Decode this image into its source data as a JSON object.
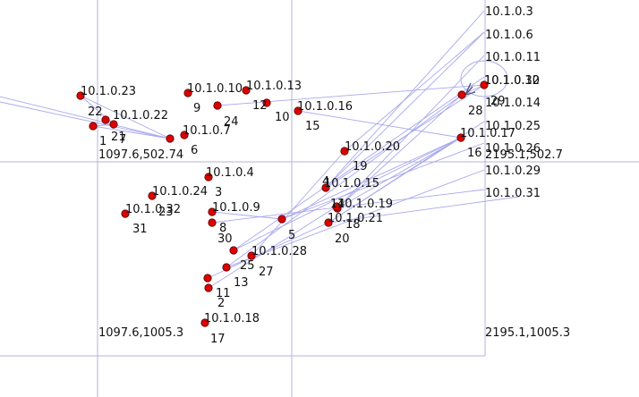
{
  "colors": {
    "background": "#ffffff",
    "grid": "#b4b4d8",
    "edge": "#a8a8ee",
    "node_fill": "#dd0000",
    "node_stroke": "#550000",
    "text": "#111111"
  },
  "corner_labels": {
    "top_left": "1097.6,502.74",
    "top_right": "2195.1,502.7",
    "bottom_left": "1097.6,1005.3",
    "bottom_right": "2195.1,1005.3"
  },
  "nodes": [
    {
      "id": "1",
      "ip": "10.1.0.23"
    },
    {
      "id": "2",
      "ip": ""
    },
    {
      "id": "3",
      "ip": "10.1.0.4"
    },
    {
      "id": "4",
      "ip": ""
    },
    {
      "id": "5",
      "ip": ""
    },
    {
      "id": "6",
      "ip": "10.1.0.7"
    },
    {
      "id": "7",
      "ip": ""
    },
    {
      "id": "8",
      "ip": "10.1.0.9"
    },
    {
      "id": "9",
      "ip": "10.1.0.10"
    },
    {
      "id": "10",
      "ip": "10.1.0.13"
    },
    {
      "id": "11",
      "ip": ""
    },
    {
      "id": "12",
      "ip": ""
    },
    {
      "id": "13",
      "ip": ""
    },
    {
      "id": "14",
      "ip": "10.1.0.15"
    },
    {
      "id": "15",
      "ip": "10.1.0.16"
    },
    {
      "id": "16",
      "ip": "10.1.0.17"
    },
    {
      "id": "17",
      "ip": "10.1.0.18"
    },
    {
      "id": "18",
      "ip": "10.1.0.19"
    },
    {
      "id": "19",
      "ip": "10.1.0.20"
    },
    {
      "id": "20",
      "ip": "10.1.0.21"
    },
    {
      "id": "21",
      "ip": "10.1.0.22"
    },
    {
      "id": "22",
      "ip": ""
    },
    {
      "id": "23",
      "ip": "10.1.0.24"
    },
    {
      "id": "24",
      "ip": ""
    },
    {
      "id": "25",
      "ip": ""
    },
    {
      "id": "26",
      "ip": ""
    },
    {
      "id": "27",
      "ip": "10.1.0.28"
    },
    {
      "id": "28",
      "ip": "10.1.0.12"
    },
    {
      "id": "29",
      "ip": "10.1.0.30"
    },
    {
      "id": "30",
      "ip": ""
    },
    {
      "id": "31",
      "ip": "10.1.0.32"
    }
  ],
  "ip_list": [
    "10.1.0.3",
    "10.1.0.6",
    "10.1.0.11",
    "10.1.0.14",
    "10.1.0.25",
    "10.1.0.26",
    "10.1.0.29",
    "10.1.0.31"
  ]
}
